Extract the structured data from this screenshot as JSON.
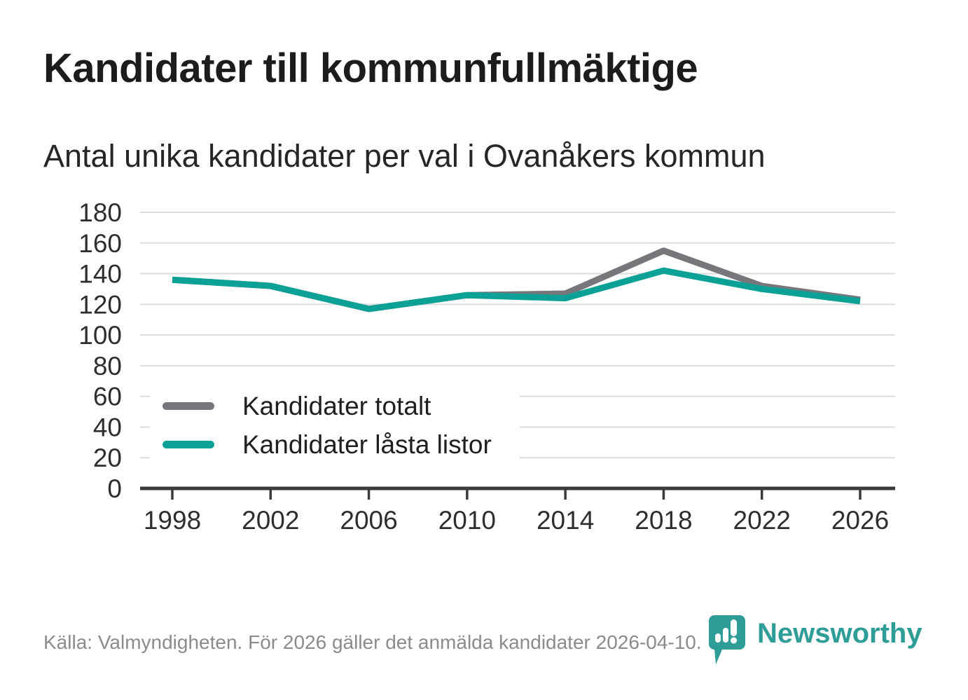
{
  "chart_data": {
    "type": "line",
    "title": "Kandidater till kommunfullmäktige",
    "subtitle": "Antal unika kandidater per val i Ovanåkers kommun",
    "categories": [
      "1998",
      "2002",
      "2006",
      "2010",
      "2014",
      "2018",
      "2022",
      "2026"
    ],
    "series": [
      {
        "name": "Kandidater totalt",
        "color": "#76767b",
        "values": [
          136,
          132,
          117,
          126,
          127,
          155,
          132,
          123
        ]
      },
      {
        "name": "Kandidater låsta listor",
        "color": "#0ba196",
        "values": [
          136,
          132,
          117,
          126,
          124,
          142,
          130,
          122
        ]
      }
    ],
    "xlabel": "",
    "ylabel": "",
    "ylim": [
      0,
      180
    ],
    "yticks": [
      0,
      20,
      40,
      60,
      80,
      100,
      120,
      140,
      160,
      180
    ],
    "grid": true,
    "legend_position": "inside-left"
  },
  "footer": {
    "source": "Källa: Valmyndigheten. För 2026 gäller det anmälda kandidater 2026-04-10."
  },
  "logo": {
    "brand": "Newsworthy",
    "icon": "newsworthy-chart-pin-icon"
  },
  "colors": {
    "accent_teal": "#0ba196",
    "series_gray": "#76767b",
    "axis": "#3b3b3b",
    "gridline": "#dcdcdc",
    "title_text": "#1c1c1c",
    "muted_text": "#8b8b8b",
    "logo_teal": "#2e9c97"
  }
}
